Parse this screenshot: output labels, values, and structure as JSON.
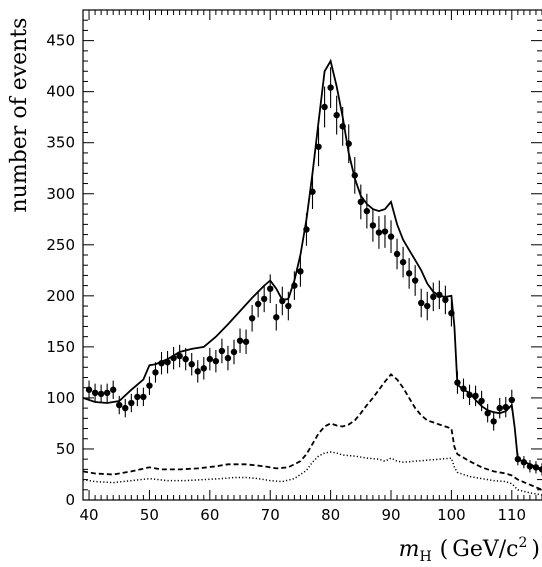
{
  "chart_data": {
    "type": "line",
    "title": "",
    "ylabel": "number of events",
    "xlabel": {
      "var": "m",
      "sub": "H",
      "open": "(",
      "unit": "GeV/c",
      "power": "2",
      "close": ")"
    },
    "xlim": [
      39,
      115
    ],
    "ylim": [
      0,
      480
    ],
    "x_ticks": [
      40,
      50,
      60,
      70,
      80,
      90,
      100,
      110
    ],
    "y_ticks": [
      0,
      50,
      100,
      150,
      200,
      250,
      300,
      350,
      400,
      450
    ],
    "grid": false,
    "legend": "none",
    "series": [
      {
        "style": "solid",
        "x": [
          39,
          41,
          43,
          45,
          47,
          49,
          50,
          51,
          53,
          55,
          57,
          59,
          61,
          63,
          65,
          67,
          69,
          70,
          71,
          72,
          73,
          74,
          75,
          76,
          77,
          78,
          79,
          80,
          81,
          82,
          83,
          84,
          85,
          86,
          87,
          88,
          89,
          90,
          91,
          92,
          93,
          94,
          95,
          96,
          97,
          98,
          99,
          100,
          100.5,
          101,
          102,
          103,
          104,
          105,
          106,
          107,
          108,
          109,
          110,
          110.5,
          111,
          113,
          115
        ],
        "y": [
          100,
          96,
          95,
          97,
          108,
          118,
          132,
          133,
          138,
          145,
          148,
          150,
          160,
          172,
          185,
          198,
          210,
          215,
          207,
          196,
          197,
          215,
          240,
          275,
          320,
          370,
          420,
          430,
          405,
          375,
          340,
          315,
          298,
          290,
          285,
          283,
          285,
          292,
          270,
          255,
          245,
          235,
          225,
          212,
          204,
          200,
          199,
          200,
          170,
          113,
          108,
          105,
          98,
          92,
          88,
          86,
          85,
          87,
          93,
          70,
          40,
          35,
          30
        ]
      },
      {
        "style": "dashed",
        "x": [
          39,
          41,
          44,
          47,
          50,
          52,
          55,
          58,
          61,
          63,
          66,
          69,
          71,
          73,
          75,
          76,
          77,
          78,
          79,
          80,
          81,
          82,
          83,
          84,
          85,
          86,
          87,
          88,
          89,
          90,
          91,
          92,
          93,
          94,
          95,
          96,
          97,
          98,
          99,
          100,
          100.5,
          101,
          103,
          105,
          107,
          109,
          110,
          111,
          113,
          115
        ],
        "y": [
          28,
          26,
          25,
          28,
          32,
          30,
          30,
          31,
          33,
          35,
          35,
          33,
          31,
          32,
          38,
          45,
          55,
          65,
          72,
          75,
          73,
          72,
          74,
          78,
          85,
          93,
          100,
          108,
          116,
          123,
          118,
          110,
          100,
          90,
          83,
          78,
          76,
          74,
          72,
          70,
          52,
          45,
          38,
          32,
          28,
          26,
          24,
          20,
          15,
          10
        ]
      },
      {
        "style": "dotted",
        "x": [
          39,
          41,
          44,
          47,
          50,
          53,
          56,
          59,
          62,
          64,
          66,
          68,
          70,
          72,
          74,
          76,
          77,
          78,
          79,
          80,
          81,
          82,
          84,
          86,
          88,
          89,
          90,
          91,
          92,
          94,
          96,
          98,
          100,
          100.5,
          101,
          103,
          105,
          107,
          109,
          110,
          111,
          113,
          115
        ],
        "y": [
          20,
          18,
          17,
          19,
          21,
          19,
          19,
          20,
          21,
          22,
          22,
          21,
          19,
          18,
          21,
          29,
          37,
          43,
          46,
          47,
          46,
          44,
          43,
          41,
          40,
          38,
          41,
          38,
          37,
          38,
          39,
          40,
          41,
          32,
          27,
          23,
          21,
          19,
          18,
          16,
          10,
          7,
          5
        ]
      },
      {
        "style": "points",
        "x": [
          40,
          41,
          42,
          43,
          44,
          45,
          46,
          47,
          48,
          49,
          50,
          51,
          52,
          53,
          54,
          55,
          56,
          57,
          58,
          59,
          60,
          61,
          62,
          63,
          64,
          65,
          66,
          67,
          68,
          69,
          70,
          71,
          72,
          73,
          74,
          75,
          76,
          77,
          78,
          79,
          80,
          81,
          82,
          83,
          84,
          85,
          86,
          87,
          88,
          89,
          90,
          91,
          92,
          93,
          94,
          95,
          96,
          97,
          98,
          99,
          100,
          101,
          102,
          103,
          104,
          105,
          106,
          107,
          108,
          109,
          110,
          111,
          112,
          113,
          114,
          115
        ],
        "y": [
          108,
          105,
          104,
          105,
          108,
          93,
          90,
          95,
          101,
          101,
          112,
          125,
          134,
          135,
          139,
          141,
          138,
          133,
          126,
          129,
          138,
          136,
          146,
          139,
          145,
          156,
          155,
          178,
          192,
          197,
          207,
          179,
          195,
          190,
          210,
          224,
          265,
          302,
          346,
          385,
          404,
          377,
          366,
          349,
          318,
          292,
          283,
          269,
          262,
          263,
          258,
          241,
          233,
          222,
          215,
          193,
          190,
          199,
          201,
          196,
          183,
          115,
          109,
          103,
          102,
          97,
          85,
          77,
          90,
          91,
          98,
          40,
          37,
          33,
          32,
          30
        ],
        "err": [
          9,
          9,
          9,
          9,
          9,
          9,
          9,
          9,
          9,
          9,
          9,
          10,
          11,
          11,
          11,
          11,
          11,
          11,
          11,
          11,
          11,
          11,
          12,
          12,
          12,
          12,
          12,
          13,
          13,
          13,
          14,
          13,
          14,
          14,
          14,
          15,
          16,
          17,
          19,
          20,
          20,
          19,
          19,
          19,
          18,
          17,
          17,
          16,
          16,
          16,
          16,
          15,
          15,
          15,
          15,
          14,
          14,
          14,
          14,
          14,
          13,
          11,
          10,
          10,
          10,
          10,
          9,
          9,
          10,
          10,
          10,
          6,
          6,
          6,
          6,
          6
        ]
      }
    ]
  }
}
